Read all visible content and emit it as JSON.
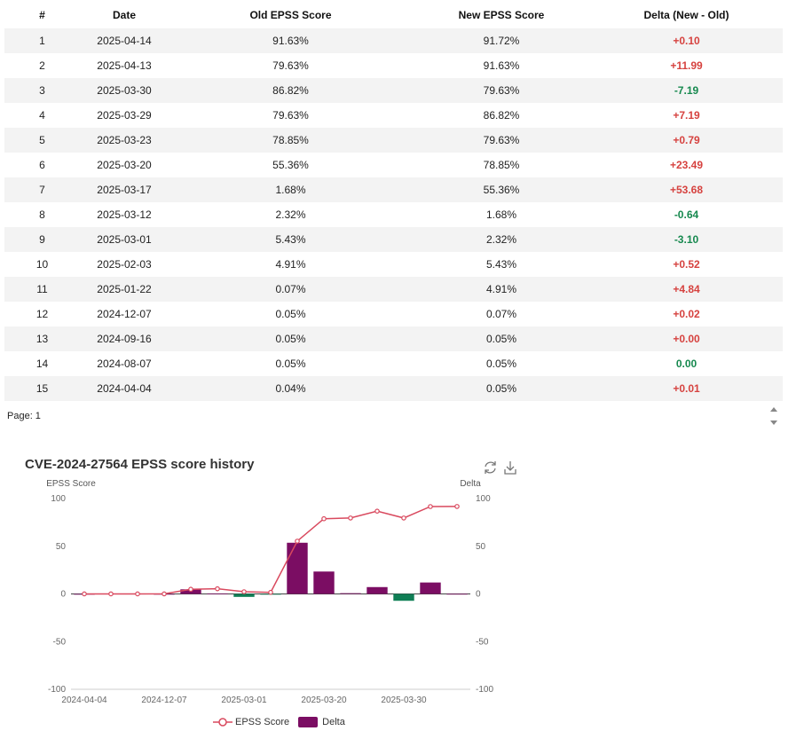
{
  "table": {
    "headers": [
      "#",
      "Date",
      "Old EPSS Score",
      "New EPSS Score",
      "Delta (New - Old)"
    ],
    "rows": [
      {
        "n": "1",
        "date": "2025-04-14",
        "old": "91.63%",
        "new": "91.72%",
        "delta": "+0.10"
      },
      {
        "n": "2",
        "date": "2025-04-13",
        "old": "79.63%",
        "new": "91.63%",
        "delta": "+11.99"
      },
      {
        "n": "3",
        "date": "2025-03-30",
        "old": "86.82%",
        "new": "79.63%",
        "delta": "-7.19"
      },
      {
        "n": "4",
        "date": "2025-03-29",
        "old": "79.63%",
        "new": "86.82%",
        "delta": "+7.19"
      },
      {
        "n": "5",
        "date": "2025-03-23",
        "old": "78.85%",
        "new": "79.63%",
        "delta": "+0.79"
      },
      {
        "n": "6",
        "date": "2025-03-20",
        "old": "55.36%",
        "new": "78.85%",
        "delta": "+23.49"
      },
      {
        "n": "7",
        "date": "2025-03-17",
        "old": "1.68%",
        "new": "55.36%",
        "delta": "+53.68"
      },
      {
        "n": "8",
        "date": "2025-03-12",
        "old": "2.32%",
        "new": "1.68%",
        "delta": "-0.64"
      },
      {
        "n": "9",
        "date": "2025-03-01",
        "old": "5.43%",
        "new": "2.32%",
        "delta": "-3.10"
      },
      {
        "n": "10",
        "date": "2025-02-03",
        "old": "4.91%",
        "new": "5.43%",
        "delta": "+0.52"
      },
      {
        "n": "11",
        "date": "2025-01-22",
        "old": "0.07%",
        "new": "4.91%",
        "delta": "+4.84"
      },
      {
        "n": "12",
        "date": "2024-12-07",
        "old": "0.05%",
        "new": "0.07%",
        "delta": "+0.02"
      },
      {
        "n": "13",
        "date": "2024-09-16",
        "old": "0.05%",
        "new": "0.05%",
        "delta": "+0.00"
      },
      {
        "n": "14",
        "date": "2024-08-07",
        "old": "0.05%",
        "new": "0.05%",
        "delta": "0.00"
      },
      {
        "n": "15",
        "date": "2024-04-04",
        "old": "0.04%",
        "new": "0.05%",
        "delta": "+0.01"
      }
    ]
  },
  "pager": {
    "label": "Page: 1"
  },
  "icons": {
    "sort": "sort-arrows-icon",
    "refresh": "refresh-icon",
    "download": "download-icon"
  },
  "colors": {
    "positive": "#d6423f",
    "negative": "#17894f",
    "line": "#d9495e",
    "bar": "#7b0d63",
    "bar_negative": "#0f7e55"
  },
  "chart_data": {
    "type": "bar",
    "title": "CVE-2024-27564 EPSS score history",
    "ylabel": "EPSS Score",
    "y2label": "Delta",
    "ylim": [
      -100,
      100
    ],
    "y2lim": [
      -100,
      100
    ],
    "yticks": [
      "100",
      "50",
      "0",
      "-50",
      "-100"
    ],
    "x": [
      "2024-04-04",
      "2024-08-07",
      "2024-09-16",
      "2024-12-07",
      "2025-01-22",
      "2025-02-03",
      "2025-03-01",
      "2025-03-12",
      "2025-03-17",
      "2025-03-20",
      "2025-03-23",
      "2025-03-29",
      "2025-03-30",
      "2025-04-13",
      "2025-04-14"
    ],
    "xticks": [
      "2024-04-04",
      "2024-12-07",
      "2025-03-01",
      "2025-03-20",
      "2025-03-30"
    ],
    "series": [
      {
        "name": "EPSS Score",
        "type": "line",
        "values": [
          0.05,
          0.05,
          0.05,
          0.07,
          4.91,
          5.43,
          2.32,
          1.68,
          55.36,
          78.85,
          79.63,
          86.82,
          79.63,
          91.63,
          91.72
        ]
      },
      {
        "name": "Delta",
        "type": "bar",
        "values": [
          0.01,
          0.0,
          0.0,
          0.02,
          4.84,
          0.52,
          -3.1,
          -0.64,
          53.68,
          23.49,
          0.79,
          7.19,
          -7.19,
          11.99,
          0.1
        ]
      }
    ],
    "legend": "bottom",
    "grid": false
  }
}
